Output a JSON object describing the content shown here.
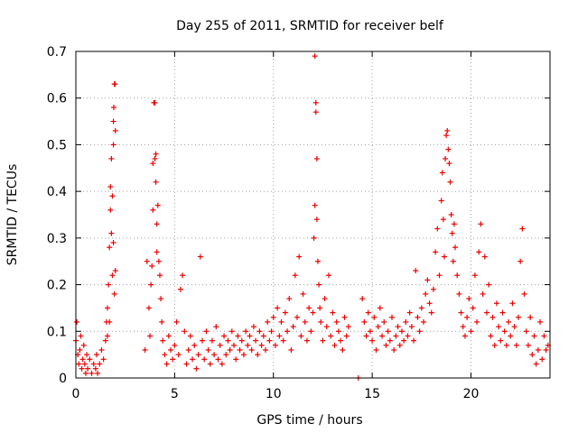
{
  "chart_data": {
    "type": "scatter",
    "title": "Day 255 of 2011, SRMTID for receiver belf",
    "xlabel": "GPS time / hours",
    "ylabel": "SRMTID / TECUs",
    "xlim": [
      0,
      24
    ],
    "ylim": [
      0,
      0.7
    ],
    "xticks": [
      0,
      5,
      10,
      15,
      20
    ],
    "xtick_labels": [
      "0",
      "5",
      "10",
      "15",
      "20"
    ],
    "yticks": [
      0,
      0.1,
      0.2,
      0.3,
      0.4,
      0.5,
      0.6,
      0.7
    ],
    "ytick_labels": [
      "0",
      "0.1",
      "0.2",
      "0.3",
      "0.4",
      "0.5",
      "0.6",
      "0.7"
    ],
    "grid": true,
    "marker": "+",
    "color": "#ee0000",
    "series": [
      {
        "name": "SRMTID",
        "points": [
          [
            0.0,
            0.08
          ],
          [
            0.05,
            0.12
          ],
          [
            0.1,
            0.05
          ],
          [
            0.15,
            0.03
          ],
          [
            0.2,
            0.06
          ],
          [
            0.25,
            0.09
          ],
          [
            0.3,
            0.02
          ],
          [
            0.35,
            0.04
          ],
          [
            0.4,
            0.07
          ],
          [
            0.45,
            0.03
          ],
          [
            0.5,
            0.01
          ],
          [
            0.55,
            0.05
          ],
          [
            0.6,
            0.02
          ],
          [
            0.7,
            0.04
          ],
          [
            0.8,
            0.01
          ],
          [
            0.9,
            0.03
          ],
          [
            1.0,
            0.02
          ],
          [
            1.05,
            0.05
          ],
          [
            1.1,
            0.01
          ],
          [
            1.2,
            0.03
          ],
          [
            1.3,
            0.06
          ],
          [
            1.4,
            0.04
          ],
          [
            1.5,
            0.08
          ],
          [
            1.55,
            0.12
          ],
          [
            1.6,
            0.15
          ],
          [
            1.65,
            0.2
          ],
          [
            1.7,
            0.28
          ],
          [
            1.75,
            0.36
          ],
          [
            1.75,
            0.41
          ],
          [
            1.8,
            0.47
          ],
          [
            1.8,
            0.31
          ],
          [
            1.85,
            0.39
          ],
          [
            1.85,
            0.22
          ],
          [
            1.9,
            0.5
          ],
          [
            1.9,
            0.55
          ],
          [
            1.92,
            0.58
          ],
          [
            1.95,
            0.63
          ],
          [
            1.98,
            0.63
          ],
          [
            2.0,
            0.53
          ],
          [
            2.0,
            0.23
          ],
          [
            1.7,
            0.12
          ],
          [
            1.6,
            0.09
          ],
          [
            1.9,
            0.29
          ],
          [
            1.95,
            0.18
          ],
          [
            3.5,
            0.06
          ],
          [
            3.6,
            0.25
          ],
          [
            3.7,
            0.15
          ],
          [
            3.75,
            0.09
          ],
          [
            3.8,
            0.2
          ],
          [
            3.85,
            0.24
          ],
          [
            3.9,
            0.36
          ],
          [
            3.9,
            0.46
          ],
          [
            3.95,
            0.59
          ],
          [
            4.0,
            0.59
          ],
          [
            4.0,
            0.47
          ],
          [
            4.05,
            0.48
          ],
          [
            4.05,
            0.42
          ],
          [
            4.1,
            0.33
          ],
          [
            4.1,
            0.27
          ],
          [
            4.15,
            0.37
          ],
          [
            4.2,
            0.25
          ],
          [
            4.25,
            0.22
          ],
          [
            4.3,
            0.17
          ],
          [
            4.35,
            0.12
          ],
          [
            4.4,
            0.08
          ],
          [
            4.5,
            0.05
          ],
          [
            4.6,
            0.03
          ],
          [
            4.7,
            0.09
          ],
          [
            4.8,
            0.06
          ],
          [
            4.9,
            0.04
          ],
          [
            5.0,
            0.07
          ],
          [
            5.1,
            0.12
          ],
          [
            5.2,
            0.05
          ],
          [
            5.3,
            0.19
          ],
          [
            5.4,
            0.22
          ],
          [
            5.5,
            0.1
          ],
          [
            5.6,
            0.03
          ],
          [
            5.7,
            0.06
          ],
          [
            5.8,
            0.09
          ],
          [
            5.9,
            0.04
          ],
          [
            6.0,
            0.07
          ],
          [
            6.1,
            0.02
          ],
          [
            6.2,
            0.05
          ],
          [
            6.3,
            0.26
          ],
          [
            6.4,
            0.08
          ],
          [
            6.5,
            0.04
          ],
          [
            6.6,
            0.1
          ],
          [
            6.7,
            0.06
          ],
          [
            6.8,
            0.03
          ],
          [
            6.9,
            0.08
          ],
          [
            7.0,
            0.05
          ],
          [
            7.1,
            0.11
          ],
          [
            7.2,
            0.04
          ],
          [
            7.3,
            0.07
          ],
          [
            7.4,
            0.03
          ],
          [
            7.5,
            0.09
          ],
          [
            7.6,
            0.05
          ],
          [
            7.7,
            0.08
          ],
          [
            7.8,
            0.06
          ],
          [
            7.9,
            0.1
          ],
          [
            8.0,
            0.07
          ],
          [
            8.1,
            0.04
          ],
          [
            8.2,
            0.09
          ],
          [
            8.3,
            0.06
          ],
          [
            8.4,
            0.08
          ],
          [
            8.5,
            0.05
          ],
          [
            8.6,
            0.1
          ],
          [
            8.7,
            0.07
          ],
          [
            8.8,
            0.09
          ],
          [
            8.9,
            0.06
          ],
          [
            9.0,
            0.11
          ],
          [
            9.1,
            0.08
          ],
          [
            9.2,
            0.05
          ],
          [
            9.3,
            0.1
          ],
          [
            9.4,
            0.07
          ],
          [
            9.5,
            0.09
          ],
          [
            9.6,
            0.06
          ],
          [
            9.7,
            0.12
          ],
          [
            9.8,
            0.08
          ],
          [
            9.9,
            0.1
          ],
          [
            10.0,
            0.13
          ],
          [
            10.1,
            0.07
          ],
          [
            10.2,
            0.15
          ],
          [
            10.3,
            0.09
          ],
          [
            10.4,
            0.12
          ],
          [
            10.5,
            0.08
          ],
          [
            10.6,
            0.14
          ],
          [
            10.7,
            0.1
          ],
          [
            10.8,
            0.17
          ],
          [
            10.9,
            0.06
          ],
          [
            11.0,
            0.11
          ],
          [
            11.1,
            0.22
          ],
          [
            11.2,
            0.13
          ],
          [
            11.3,
            0.26
          ],
          [
            11.4,
            0.09
          ],
          [
            11.5,
            0.18
          ],
          [
            11.6,
            0.12
          ],
          [
            11.7,
            0.08
          ],
          [
            11.8,
            0.15
          ],
          [
            11.9,
            0.1
          ],
          [
            12.0,
            0.14
          ],
          [
            12.05,
            0.3
          ],
          [
            12.1,
            0.37
          ],
          [
            12.1,
            0.69
          ],
          [
            12.15,
            0.59
          ],
          [
            12.15,
            0.57
          ],
          [
            12.2,
            0.47
          ],
          [
            12.2,
            0.34
          ],
          [
            12.25,
            0.25
          ],
          [
            12.3,
            0.2
          ],
          [
            12.35,
            0.15
          ],
          [
            12.4,
            0.12
          ],
          [
            12.5,
            0.08
          ],
          [
            12.6,
            0.17
          ],
          [
            12.7,
            0.11
          ],
          [
            12.8,
            0.22
          ],
          [
            12.9,
            0.09
          ],
          [
            13.0,
            0.14
          ],
          [
            13.1,
            0.07
          ],
          [
            13.2,
            0.12
          ],
          [
            13.3,
            0.1
          ],
          [
            13.4,
            0.08
          ],
          [
            13.5,
            0.06
          ],
          [
            13.6,
            0.13
          ],
          [
            13.7,
            0.09
          ],
          [
            13.8,
            0.11
          ],
          [
            14.3,
            0.0
          ],
          [
            14.5,
            0.17
          ],
          [
            14.6,
            0.12
          ],
          [
            14.7,
            0.09
          ],
          [
            14.8,
            0.14
          ],
          [
            14.9,
            0.1
          ],
          [
            15.0,
            0.08
          ],
          [
            15.1,
            0.13
          ],
          [
            15.2,
            0.06
          ],
          [
            15.3,
            0.11
          ],
          [
            15.4,
            0.15
          ],
          [
            15.5,
            0.09
          ],
          [
            15.6,
            0.12
          ],
          [
            15.7,
            0.07
          ],
          [
            15.8,
            0.1
          ],
          [
            15.9,
            0.08
          ],
          [
            16.0,
            0.13
          ],
          [
            16.1,
            0.06
          ],
          [
            16.2,
            0.09
          ],
          [
            16.3,
            0.11
          ],
          [
            16.4,
            0.07
          ],
          [
            16.5,
            0.1
          ],
          [
            16.6,
            0.08
          ],
          [
            16.7,
            0.12
          ],
          [
            16.8,
            0.09
          ],
          [
            16.9,
            0.14
          ],
          [
            17.0,
            0.11
          ],
          [
            17.1,
            0.08
          ],
          [
            17.2,
            0.23
          ],
          [
            17.3,
            0.13
          ],
          [
            17.4,
            0.1
          ],
          [
            17.5,
            0.15
          ],
          [
            17.6,
            0.12
          ],
          [
            17.7,
            0.18
          ],
          [
            17.8,
            0.21
          ],
          [
            17.9,
            0.16
          ],
          [
            18.0,
            0.14
          ],
          [
            18.1,
            0.19
          ],
          [
            18.2,
            0.27
          ],
          [
            18.3,
            0.32
          ],
          [
            18.4,
            0.22
          ],
          [
            18.5,
            0.38
          ],
          [
            18.55,
            0.44
          ],
          [
            18.6,
            0.34
          ],
          [
            18.65,
            0.26
          ],
          [
            18.7,
            0.47
          ],
          [
            18.75,
            0.52
          ],
          [
            18.8,
            0.53
          ],
          [
            18.85,
            0.49
          ],
          [
            18.9,
            0.46
          ],
          [
            18.95,
            0.42
          ],
          [
            19.0,
            0.35
          ],
          [
            19.05,
            0.31
          ],
          [
            19.1,
            0.25
          ],
          [
            19.15,
            0.33
          ],
          [
            19.2,
            0.28
          ],
          [
            19.3,
            0.22
          ],
          [
            19.4,
            0.18
          ],
          [
            19.5,
            0.14
          ],
          [
            19.6,
            0.11
          ],
          [
            19.7,
            0.09
          ],
          [
            19.8,
            0.13
          ],
          [
            19.9,
            0.17
          ],
          [
            20.0,
            0.1
          ],
          [
            20.1,
            0.15
          ],
          [
            20.2,
            0.22
          ],
          [
            20.3,
            0.12
          ],
          [
            20.4,
            0.27
          ],
          [
            20.5,
            0.33
          ],
          [
            20.6,
            0.18
          ],
          [
            20.7,
            0.26
          ],
          [
            20.8,
            0.14
          ],
          [
            20.9,
            0.2
          ],
          [
            21.0,
            0.09
          ],
          [
            21.1,
            0.13
          ],
          [
            21.2,
            0.07
          ],
          [
            21.3,
            0.16
          ],
          [
            21.4,
            0.11
          ],
          [
            21.5,
            0.08
          ],
          [
            21.6,
            0.14
          ],
          [
            21.7,
            0.1
          ],
          [
            21.8,
            0.07
          ],
          [
            21.9,
            0.12
          ],
          [
            22.0,
            0.09
          ],
          [
            22.1,
            0.16
          ],
          [
            22.2,
            0.11
          ],
          [
            22.3,
            0.07
          ],
          [
            22.4,
            0.13
          ],
          [
            22.5,
            0.25
          ],
          [
            22.6,
            0.32
          ],
          [
            22.7,
            0.18
          ],
          [
            22.8,
            0.1
          ],
          [
            22.9,
            0.07
          ],
          [
            23.0,
            0.13
          ],
          [
            23.1,
            0.05
          ],
          [
            23.2,
            0.09
          ],
          [
            23.3,
            0.03
          ],
          [
            23.4,
            0.06
          ],
          [
            23.5,
            0.12
          ],
          [
            23.6,
            0.04
          ],
          [
            23.7,
            0.09
          ],
          [
            23.8,
            0.06
          ],
          [
            23.9,
            0.07
          ]
        ]
      }
    ]
  }
}
